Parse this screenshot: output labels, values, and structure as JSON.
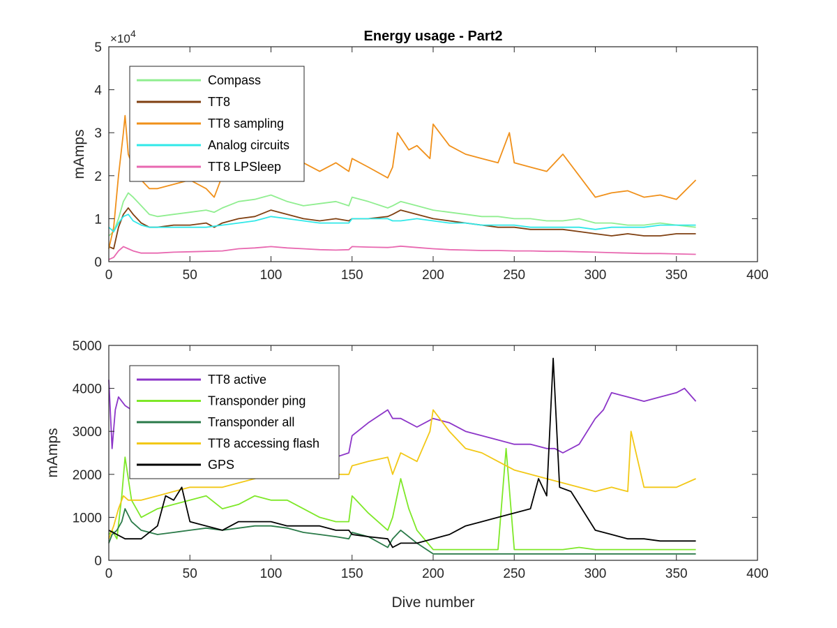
{
  "chart_data": [
    {
      "type": "line",
      "title": "Energy usage - Part2",
      "xlabel": "",
      "ylabel": "mAmps",
      "xlim": [
        0,
        400
      ],
      "ylim": [
        0,
        50000
      ],
      "xticks": [
        0,
        50,
        100,
        150,
        200,
        250,
        300,
        350,
        400
      ],
      "yticks": [
        0,
        10000,
        20000,
        30000,
        40000,
        50000
      ],
      "ytick_labels": [
        "0",
        "1",
        "2",
        "3",
        "4",
        "5"
      ],
      "y_exponent_label": "×10",
      "y_exponent_power": "4",
      "grid": false,
      "legend_position": "top-left",
      "series": [
        {
          "name": "Compass",
          "color": "#90ee90",
          "x": [
            0,
            3,
            6,
            9,
            12,
            15,
            20,
            25,
            30,
            40,
            50,
            60,
            65,
            70,
            80,
            90,
            100,
            110,
            120,
            130,
            140,
            148,
            150,
            160,
            172,
            175,
            180,
            190,
            200,
            210,
            220,
            230,
            240,
            250,
            260,
            270,
            280,
            290,
            300,
            310,
            320,
            330,
            340,
            350,
            362
          ],
          "y": [
            6000,
            7000,
            10000,
            14000,
            16000,
            15000,
            13000,
            11000,
            10500,
            11000,
            11500,
            12000,
            11500,
            12500,
            14000,
            14500,
            15500,
            14000,
            13000,
            13500,
            14000,
            13000,
            15000,
            14000,
            12500,
            13000,
            14000,
            13000,
            12000,
            11500,
            11000,
            10500,
            10500,
            10000,
            10000,
            9500,
            9500,
            10000,
            9000,
            9000,
            8500,
            8500,
            9000,
            8500,
            8000
          ]
        },
        {
          "name": "TT8",
          "color": "#7f3f10",
          "x": [
            0,
            3,
            6,
            9,
            12,
            15,
            20,
            25,
            30,
            40,
            50,
            60,
            65,
            70,
            80,
            90,
            100,
            110,
            120,
            130,
            140,
            148,
            150,
            160,
            172,
            175,
            180,
            190,
            200,
            210,
            220,
            230,
            240,
            250,
            260,
            270,
            280,
            290,
            300,
            310,
            320,
            330,
            340,
            350,
            362
          ],
          "y": [
            3500,
            3000,
            8000,
            11000,
            12500,
            11000,
            9000,
            8000,
            8000,
            8500,
            8500,
            9000,
            8000,
            9000,
            10000,
            10500,
            12000,
            11000,
            10000,
            9500,
            10000,
            9500,
            10000,
            10000,
            10500,
            11000,
            12000,
            11000,
            10000,
            9500,
            9000,
            8500,
            8000,
            8000,
            7500,
            7500,
            7500,
            7000,
            6500,
            6000,
            6500,
            6000,
            6000,
            6500,
            6500
          ]
        },
        {
          "name": "TT8 sampling",
          "color": "#f0901a",
          "x": [
            0,
            3,
            6,
            9,
            10,
            12,
            15,
            20,
            25,
            30,
            40,
            50,
            60,
            65,
            70,
            80,
            90,
            100,
            110,
            120,
            130,
            140,
            148,
            150,
            160,
            172,
            175,
            178,
            185,
            190,
            198,
            200,
            210,
            220,
            230,
            240,
            247,
            250,
            260,
            270,
            280,
            290,
            300,
            310,
            320,
            330,
            340,
            350,
            362
          ],
          "y": [
            3000,
            8000,
            20000,
            30000,
            34000,
            25000,
            22000,
            19000,
            17000,
            17000,
            18000,
            19000,
            17000,
            15000,
            20000,
            21000,
            26000,
            24000,
            21000,
            23000,
            21000,
            23000,
            21000,
            24000,
            22000,
            19500,
            22000,
            30000,
            26000,
            27000,
            24000,
            32000,
            27000,
            25000,
            24000,
            23000,
            30000,
            23000,
            22000,
            21000,
            25000,
            20000,
            15000,
            16000,
            16500,
            15000,
            15500,
            14500,
            19000
          ]
        },
        {
          "name": "Analog circuits",
          "color": "#30e8e8",
          "x": [
            0,
            3,
            6,
            9,
            12,
            15,
            20,
            25,
            30,
            40,
            50,
            60,
            70,
            80,
            90,
            100,
            110,
            120,
            130,
            140,
            148,
            150,
            160,
            172,
            175,
            180,
            190,
            200,
            210,
            220,
            230,
            240,
            250,
            260,
            270,
            280,
            290,
            300,
            310,
            320,
            330,
            340,
            350,
            362
          ],
          "y": [
            8000,
            7000,
            9000,
            10500,
            11000,
            9500,
            8500,
            8000,
            8000,
            8000,
            8000,
            8000,
            8500,
            9000,
            9500,
            10500,
            10000,
            9500,
            9000,
            9000,
            9000,
            10000,
            10000,
            10000,
            9500,
            9500,
            10000,
            9500,
            9000,
            9000,
            8500,
            8500,
            8500,
            8000,
            8000,
            8000,
            8000,
            7500,
            8000,
            8000,
            8000,
            8500,
            8500,
            8500
          ]
        },
        {
          "name": "TT8 LPSleep",
          "color": "#e868b0",
          "x": [
            0,
            3,
            6,
            9,
            12,
            15,
            20,
            30,
            40,
            50,
            60,
            70,
            80,
            90,
            100,
            110,
            120,
            130,
            140,
            148,
            150,
            160,
            172,
            175,
            180,
            190,
            200,
            210,
            220,
            230,
            240,
            250,
            260,
            270,
            280,
            290,
            300,
            310,
            320,
            330,
            340,
            350,
            362
          ],
          "y": [
            500,
            1000,
            2500,
            3500,
            3000,
            2500,
            2000,
            2000,
            2200,
            2300,
            2400,
            2500,
            3000,
            3200,
            3500,
            3200,
            3000,
            2800,
            2700,
            2800,
            3500,
            3400,
            3300,
            3400,
            3600,
            3300,
            3000,
            2800,
            2700,
            2600,
            2600,
            2500,
            2500,
            2400,
            2400,
            2300,
            2200,
            2100,
            2000,
            1900,
            1900,
            1800,
            1700
          ]
        }
      ]
    },
    {
      "type": "line",
      "title": "",
      "xlabel": "Dive number",
      "ylabel": "mAmps",
      "xlim": [
        0,
        400
      ],
      "ylim": [
        0,
        5000
      ],
      "xticks": [
        0,
        50,
        100,
        150,
        200,
        250,
        300,
        350,
        400
      ],
      "yticks": [
        0,
        1000,
        2000,
        3000,
        4000,
        5000
      ],
      "grid": false,
      "legend_position": "top-left",
      "series": [
        {
          "name": "TT8 active",
          "color": "#8c35c8",
          "x": [
            0,
            2,
            4,
            6,
            8,
            10,
            14,
            20,
            30,
            40,
            50,
            60,
            70,
            80,
            90,
            100,
            110,
            120,
            130,
            140,
            148,
            150,
            160,
            172,
            175,
            180,
            190,
            200,
            210,
            220,
            230,
            240,
            250,
            260,
            270,
            275,
            280,
            290,
            300,
            305,
            310,
            320,
            330,
            340,
            350,
            355,
            362
          ],
          "y": [
            4200,
            2600,
            3500,
            3800,
            3700,
            3600,
            3500,
            3400,
            3300,
            3200,
            3100,
            3000,
            3000,
            2900,
            2800,
            2700,
            2600,
            2600,
            2500,
            2400,
            2500,
            2900,
            3200,
            3500,
            3300,
            3300,
            3100,
            3300,
            3200,
            3000,
            2900,
            2800,
            2700,
            2700,
            2600,
            2600,
            2500,
            2700,
            3300,
            3500,
            3900,
            3800,
            3700,
            3800,
            3900,
            4000,
            3700
          ]
        },
        {
          "name": "Transponder ping",
          "color": "#7ee828",
          "x": [
            0,
            2,
            5,
            8,
            10,
            14,
            20,
            30,
            40,
            50,
            60,
            70,
            80,
            90,
            100,
            110,
            120,
            130,
            140,
            148,
            150,
            160,
            172,
            175,
            180,
            185,
            190,
            200,
            210,
            220,
            230,
            240,
            245,
            250,
            260,
            270,
            280,
            290,
            300,
            310,
            320,
            330,
            340,
            350,
            362
          ],
          "y": [
            600,
            700,
            500,
            1500,
            2400,
            1400,
            1000,
            1200,
            1300,
            1400,
            1500,
            1200,
            1300,
            1500,
            1400,
            1400,
            1200,
            1000,
            900,
            900,
            1500,
            1100,
            700,
            1000,
            1900,
            1200,
            700,
            250,
            250,
            250,
            250,
            250,
            2600,
            250,
            250,
            250,
            250,
            300,
            250,
            250,
            250,
            250,
            250,
            250,
            250
          ]
        },
        {
          "name": "Transponder all",
          "color": "#2a7a48",
          "x": [
            0,
            2,
            5,
            8,
            10,
            14,
            20,
            30,
            40,
            50,
            60,
            70,
            80,
            90,
            100,
            110,
            120,
            130,
            140,
            148,
            150,
            160,
            172,
            175,
            180,
            190,
            200,
            210,
            220,
            230,
            240,
            250,
            260,
            270,
            280,
            290,
            300,
            310,
            320,
            330,
            340,
            350,
            362
          ],
          "y": [
            400,
            600,
            700,
            900,
            1200,
            900,
            700,
            600,
            650,
            700,
            750,
            700,
            750,
            800,
            800,
            750,
            650,
            600,
            550,
            500,
            650,
            550,
            300,
            500,
            700,
            400,
            150,
            150,
            150,
            150,
            150,
            150,
            150,
            150,
            150,
            150,
            150,
            150,
            150,
            150,
            150,
            150,
            150
          ]
        },
        {
          "name": "TT8 accessing flash",
          "color": "#f2c816",
          "x": [
            0,
            3,
            6,
            9,
            12,
            15,
            20,
            30,
            40,
            50,
            60,
            70,
            80,
            90,
            100,
            110,
            120,
            130,
            140,
            148,
            150,
            160,
            172,
            175,
            180,
            190,
            198,
            200,
            210,
            220,
            230,
            240,
            250,
            260,
            270,
            280,
            290,
            300,
            310,
            320,
            322,
            330,
            340,
            350,
            362
          ],
          "y": [
            500,
            800,
            1200,
            1500,
            1400,
            1400,
            1400,
            1500,
            1600,
            1700,
            1700,
            1700,
            1800,
            1900,
            2000,
            2000,
            2000,
            2000,
            2000,
            2000,
            2200,
            2300,
            2400,
            2000,
            2500,
            2300,
            3000,
            3500,
            3000,
            2600,
            2500,
            2300,
            2100,
            2000,
            1900,
            1800,
            1700,
            1600,
            1700,
            1600,
            3000,
            1700,
            1700,
            1700,
            1900
          ]
        },
        {
          "name": "GPS",
          "color": "#000000",
          "x": [
            0,
            5,
            10,
            20,
            30,
            35,
            40,
            45,
            50,
            60,
            70,
            80,
            90,
            100,
            110,
            120,
            130,
            140,
            148,
            150,
            160,
            172,
            175,
            180,
            190,
            200,
            210,
            220,
            230,
            240,
            250,
            260,
            265,
            270,
            274,
            278,
            285,
            290,
            300,
            310,
            320,
            330,
            340,
            350,
            362
          ],
          "y": [
            700,
            600,
            500,
            500,
            800,
            1500,
            1400,
            1700,
            900,
            800,
            700,
            900,
            900,
            900,
            800,
            800,
            800,
            700,
            700,
            600,
            550,
            500,
            300,
            400,
            400,
            500,
            600,
            800,
            900,
            1000,
            1100,
            1200,
            1900,
            1500,
            4700,
            1700,
            1600,
            1300,
            700,
            600,
            500,
            500,
            450,
            450,
            450
          ]
        }
      ]
    }
  ]
}
